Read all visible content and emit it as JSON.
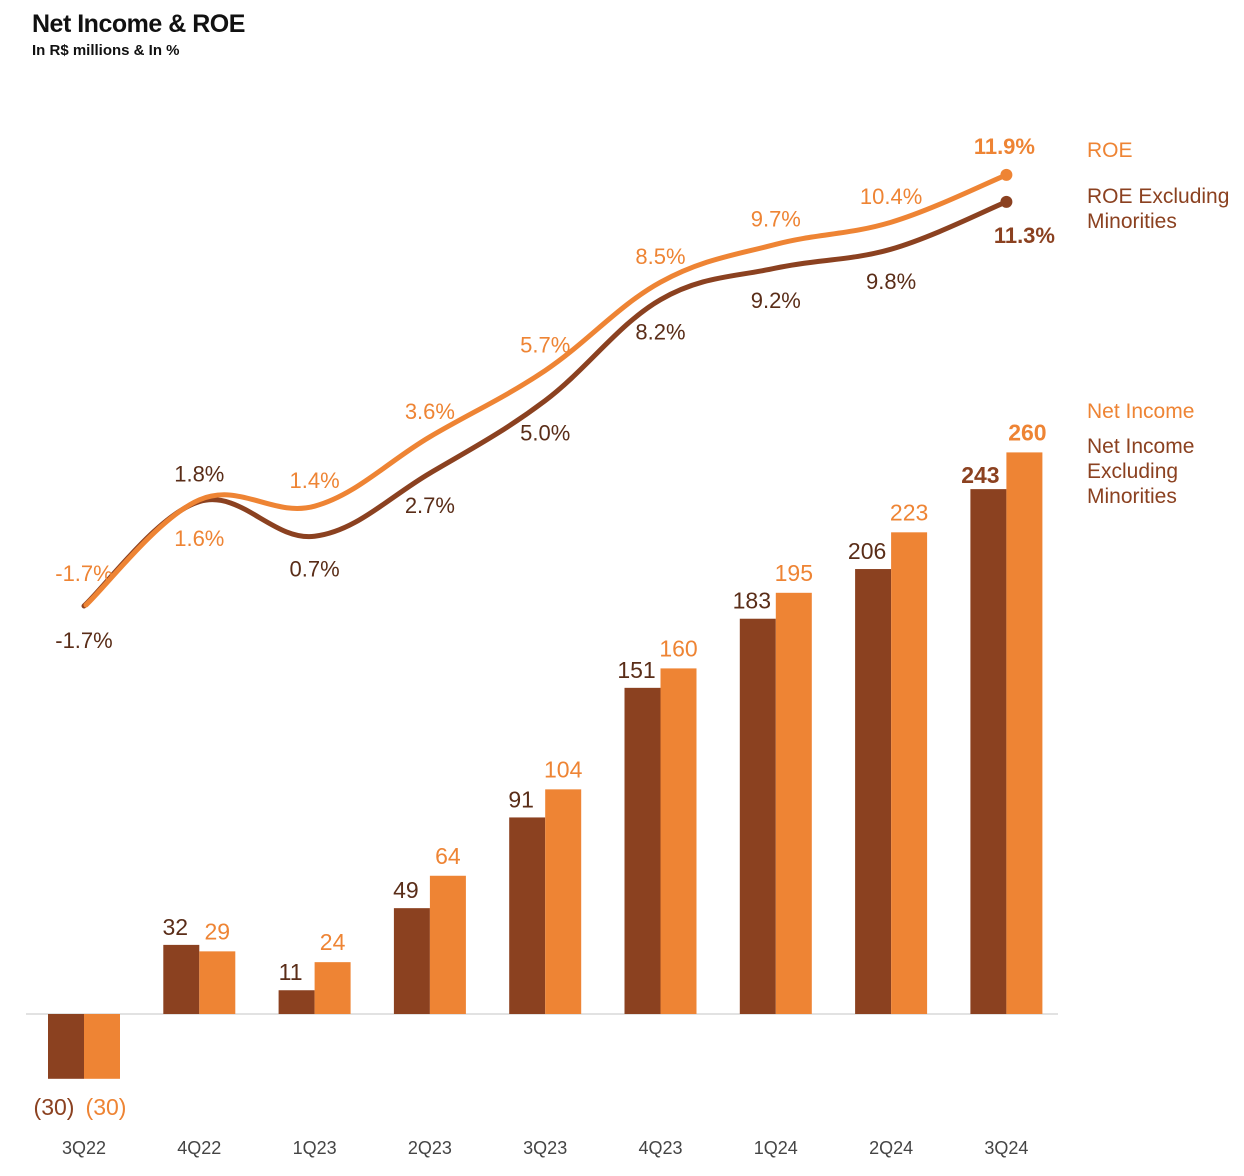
{
  "chart_data": {
    "type": "bar",
    "title": "Net Income & ROE",
    "subtitle": "In R$ millions & In %",
    "categories": [
      "3Q22",
      "4Q22",
      "1Q23",
      "2Q23",
      "3Q23",
      "4Q23",
      "1Q24",
      "2Q24",
      "3Q24"
    ],
    "bar_series": [
      {
        "name": "Net Income Excluding Minorities",
        "color": "#8B4120",
        "values": [
          -30,
          32,
          11,
          49,
          91,
          151,
          183,
          206,
          243
        ],
        "labels": [
          "(30)",
          "32",
          "11",
          "49",
          "91",
          "151",
          "183",
          "206",
          "243"
        ]
      },
      {
        "name": "Net Income",
        "color": "#EE8434",
        "values": [
          -30,
          29,
          24,
          64,
          104,
          160,
          195,
          223,
          260
        ],
        "labels": [
          "(30)",
          "29",
          "24",
          "64",
          "104",
          "160",
          "195",
          "223",
          "260"
        ]
      }
    ],
    "line_series": [
      {
        "name": "ROE",
        "color": "#EE8434",
        "values": [
          -1.7,
          1.6,
          1.4,
          3.6,
          5.7,
          8.5,
          9.7,
          10.4,
          11.9
        ],
        "labels": [
          "-1.7%",
          "1.6%",
          "1.4%",
          "3.6%",
          "5.7%",
          "8.5%",
          "9.7%",
          "10.4%",
          "11.9%"
        ]
      },
      {
        "name": "ROE Excluding Minorities",
        "color": "#8B4120",
        "values": [
          -1.7,
          1.8,
          0.7,
          2.7,
          5.0,
          8.2,
          9.2,
          9.8,
          11.3
        ],
        "labels": [
          "-1.7%",
          "1.8%",
          "0.7%",
          "2.7%",
          "5.0%",
          "8.2%",
          "9.2%",
          "9.8%",
          "11.3%"
        ]
      }
    ],
    "legend": {
      "roe": "ROE",
      "roe_ex": "ROE Excluding Minorities",
      "ni": "Net Income",
      "ni_ex": "Net Income Excluding Minorities"
    }
  }
}
